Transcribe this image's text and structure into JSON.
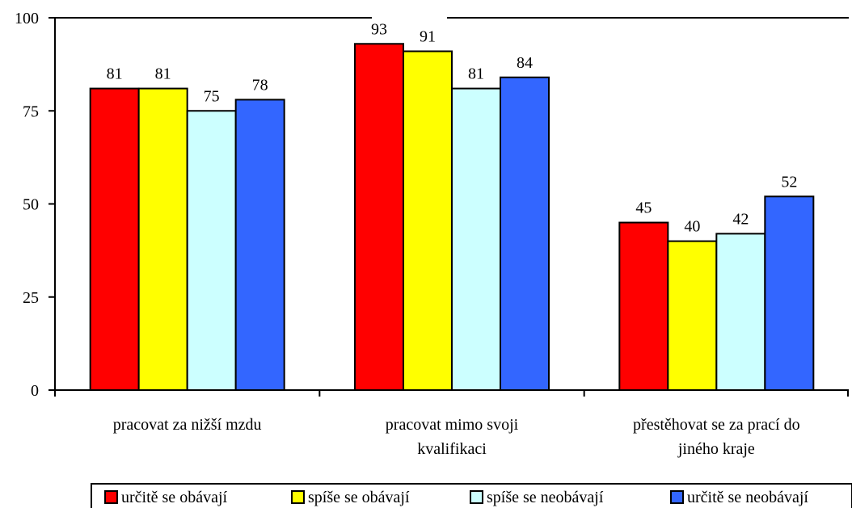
{
  "chart_data": {
    "type": "bar",
    "title": "",
    "xlabel": "",
    "ylabel": "",
    "ylim": [
      0,
      100
    ],
    "yticks": [
      0,
      25,
      50,
      75,
      100
    ],
    "grid": false,
    "legend_position": "bottom",
    "categories": [
      [
        "pracovat za nižší mzdu"
      ],
      [
        "pracovat mimo svoji",
        "kvalifikaci"
      ],
      [
        "přestěhovat se za prací do",
        "jiného kraje"
      ]
    ],
    "series": [
      {
        "name": "určitě se obávají",
        "color": "#ff0000",
        "values": [
          81,
          93,
          45
        ]
      },
      {
        "name": "spíše se obávají",
        "color": "#ffff00",
        "values": [
          81,
          91,
          40
        ]
      },
      {
        "name": "spíše se neobávají",
        "color": "#ccffff",
        "values": [
          75,
          81,
          42
        ]
      },
      {
        "name": "určitě se neobávají",
        "color": "#3366ff",
        "values": [
          78,
          84,
          52
        ]
      }
    ]
  }
}
